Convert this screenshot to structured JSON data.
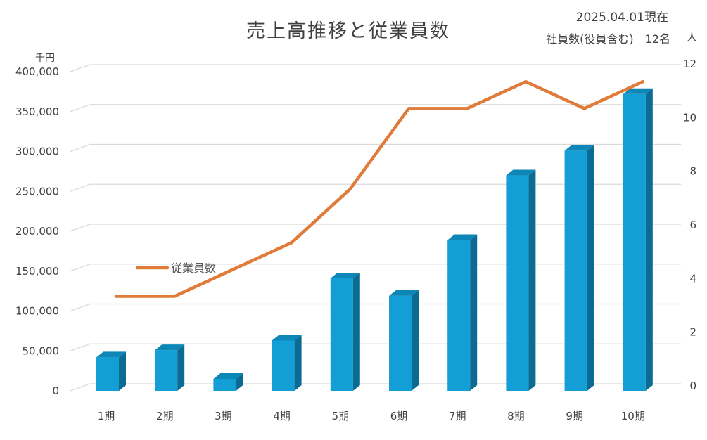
{
  "header": {
    "title": "売上高推移と従業員数",
    "date": "2025.04.01現在",
    "employees": "社員数(役員含む)　12名"
  },
  "colors": {
    "bar_front": "#139fd5",
    "bar_side": "#0b6b92",
    "bar_top": "#0d87b7",
    "line": "#e07b39",
    "grid": "#d9d9d9"
  },
  "chart_data": {
    "type": "bar",
    "title": "売上高推移と従業員数",
    "categories": [
      "1期",
      "2期",
      "3期",
      "4期",
      "5期",
      "6期",
      "7期",
      "8期",
      "9期",
      "10期"
    ],
    "ylabel": "千円",
    "y2label": "人",
    "ylim": [
      0,
      400000
    ],
    "y2lim": [
      0,
      12
    ],
    "yticks": [
      "0",
      "50,000",
      "100,000",
      "150,000",
      "200,000",
      "250,000",
      "300,000",
      "350,000",
      "400,000"
    ],
    "y2ticks": [
      "0",
      "2",
      "4",
      "6",
      "8",
      "10",
      "12"
    ],
    "grid": true,
    "series": [
      {
        "type": "bar",
        "values": [
          42000,
          51000,
          15000,
          63000,
          141000,
          119000,
          189000,
          270000,
          301000,
          372000
        ]
      },
      {
        "name": "従業員数",
        "type": "line",
        "axis": "right",
        "values": [
          3,
          3,
          4,
          5,
          7,
          10,
          10,
          11,
          10,
          11
        ]
      }
    ],
    "legend_position": "left"
  }
}
